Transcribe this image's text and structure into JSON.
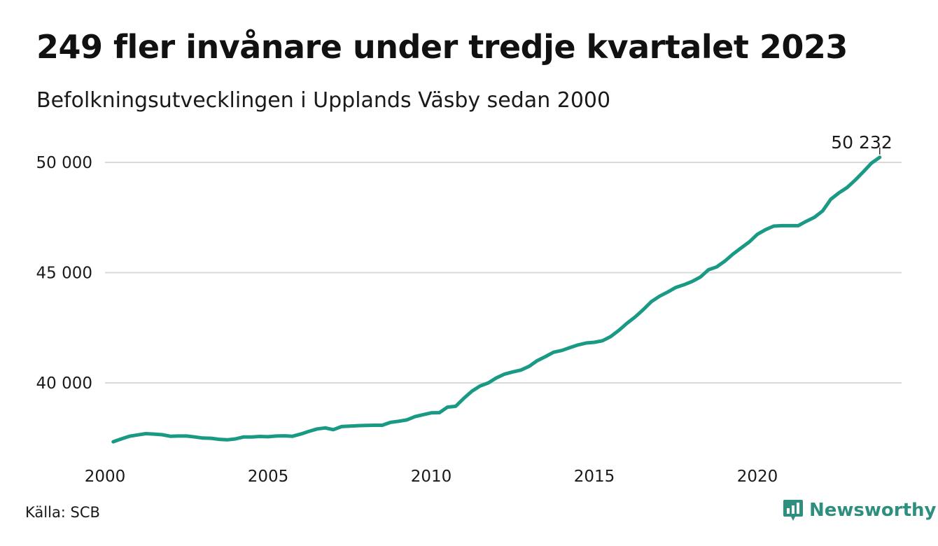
{
  "title": "249 fler invånare under tredje kvartalet 2023",
  "subtitle": "Befolkningsutvecklingen i Upplands Väsby sedan 2000",
  "source": "Källa: SCB",
  "brand": {
    "name": "Newsworthy",
    "icon": "newsworthy-logo-icon",
    "color": "#2f8f7e"
  },
  "colors": {
    "line": "#1a9a85",
    "grid": "#d9d9d9"
  },
  "chart_data": {
    "type": "line",
    "title": "249 fler invånare under tredje kvartalet 2023",
    "subtitle": "Befolkningsutvecklingen i Upplands Väsby sedan 2000",
    "xlabel": "",
    "ylabel": "",
    "xlim": [
      2000,
      2024
    ],
    "ylim": [
      36700,
      50600
    ],
    "x_ticks": [
      2000,
      2005,
      2010,
      2015,
      2020
    ],
    "x_tick_labels": [
      "2000",
      "2005",
      "2010",
      "2015",
      "2020"
    ],
    "y_ticks": [
      40000,
      45000,
      50000
    ],
    "y_tick_labels": [
      "40 000",
      "45 000",
      "50 000"
    ],
    "grid": "horizontal",
    "legend": "none",
    "annotation": {
      "x": 2023.75,
      "y": 50232,
      "text": "50 232"
    },
    "x": [
      2000.25,
      2000.5,
      2000.75,
      2001.0,
      2001.25,
      2001.5,
      2001.75,
      2002.0,
      2002.25,
      2002.5,
      2002.75,
      2003.0,
      2003.25,
      2003.5,
      2003.75,
      2004.0,
      2004.25,
      2004.5,
      2004.75,
      2005.0,
      2005.25,
      2005.5,
      2005.75,
      2006.0,
      2006.25,
      2006.5,
      2006.75,
      2007.0,
      2007.25,
      2007.5,
      2007.75,
      2008.0,
      2008.25,
      2008.5,
      2008.75,
      2009.0,
      2009.25,
      2009.5,
      2009.75,
      2010.0,
      2010.25,
      2010.5,
      2010.75,
      2011.0,
      2011.25,
      2011.5,
      2011.75,
      2012.0,
      2012.25,
      2012.5,
      2012.75,
      2013.0,
      2013.25,
      2013.5,
      2013.75,
      2014.0,
      2014.25,
      2014.5,
      2014.75,
      2015.0,
      2015.25,
      2015.5,
      2015.75,
      2016.0,
      2016.25,
      2016.5,
      2016.75,
      2017.0,
      2017.25,
      2017.5,
      2017.75,
      2018.0,
      2018.25,
      2018.5,
      2018.75,
      2019.0,
      2019.25,
      2019.5,
      2019.75,
      2020.0,
      2020.25,
      2020.5,
      2020.75,
      2021.0,
      2021.25,
      2021.5,
      2021.75,
      2022.0,
      2022.25,
      2022.5,
      2022.75,
      2023.0,
      2023.25,
      2023.5,
      2023.75
    ],
    "series": [
      {
        "values": [
          37330,
          37460,
          37580,
          37640,
          37700,
          37680,
          37650,
          37580,
          37590,
          37590,
          37550,
          37500,
          37490,
          37440,
          37420,
          37460,
          37550,
          37550,
          37570,
          37560,
          37590,
          37600,
          37580,
          37680,
          37800,
          37910,
          37960,
          37880,
          38020,
          38040,
          38060,
          38070,
          38080,
          38080,
          38210,
          38260,
          38320,
          38470,
          38560,
          38640,
          38650,
          38900,
          38940,
          39300,
          39630,
          39860,
          40000,
          40230,
          40400,
          40500,
          40580,
          40750,
          41010,
          41190,
          41390,
          41470,
          41600,
          41720,
          41810,
          41840,
          41910,
          42100,
          42380,
          42700,
          42990,
          43320,
          43690,
          43930,
          44120,
          44330,
          44450,
          44600,
          44800,
          45130,
          45260,
          45520,
          45840,
          46120,
          46390,
          46740,
          46950,
          47110,
          47130,
          47130,
          47130,
          47330,
          47510,
          47800,
          48330,
          48620,
          48860,
          49200,
          49580,
          49970,
          50232
        ]
      }
    ]
  }
}
